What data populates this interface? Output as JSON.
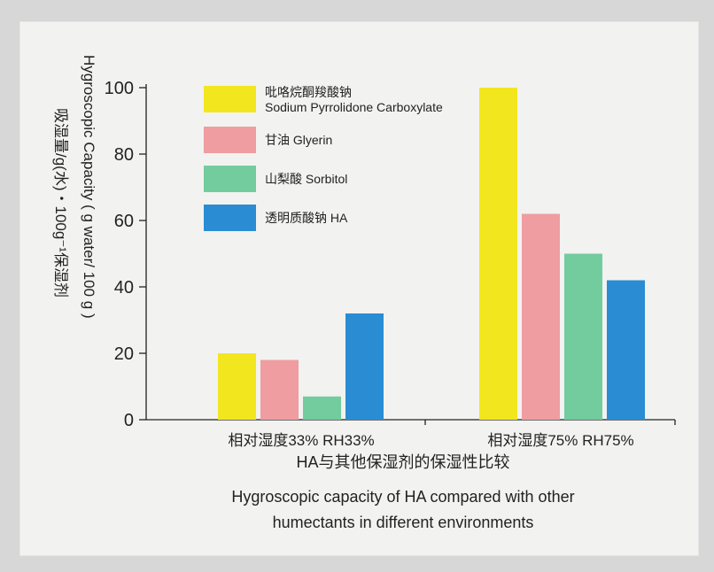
{
  "chart_data": {
    "type": "bar",
    "categories": [
      "相对湿度33% RH33%",
      "相对湿度75% RH75%"
    ],
    "series": [
      {
        "name_lines": [
          "吡咯烷酮羧酸钠",
          "Sodium Pyrrolidone Carboxylate"
        ],
        "color": "#f2e61f",
        "values": [
          20,
          100
        ]
      },
      {
        "name_lines": [
          "甘油 Glyerin"
        ],
        "color": "#ef9da0",
        "values": [
          18,
          62
        ]
      },
      {
        "name_lines": [
          "山梨酸 Sorbitol"
        ],
        "color": "#72cc9d",
        "values": [
          7,
          50
        ]
      },
      {
        "name_lines": [
          "透明质酸钠 HA"
        ],
        "color": "#2a8dd4",
        "values": [
          32,
          42
        ]
      }
    ],
    "ylim": [
      0,
      100
    ],
    "yticks": [
      "0",
      "20",
      "40",
      "60",
      "80",
      "100"
    ],
    "ylabel_en": "Hygroscopic Capacity ( g water/ 100 g )",
    "ylabel_cn": "吸湿量/g(水)・100g⁻¹保湿剂",
    "caption_cn": "HA与其他保湿剂的保湿性比较",
    "caption_en": [
      "Hygroscopic capacity of HA compared with other",
      "humectants in different environments"
    ],
    "legend_position": "top-left",
    "grid": false
  }
}
